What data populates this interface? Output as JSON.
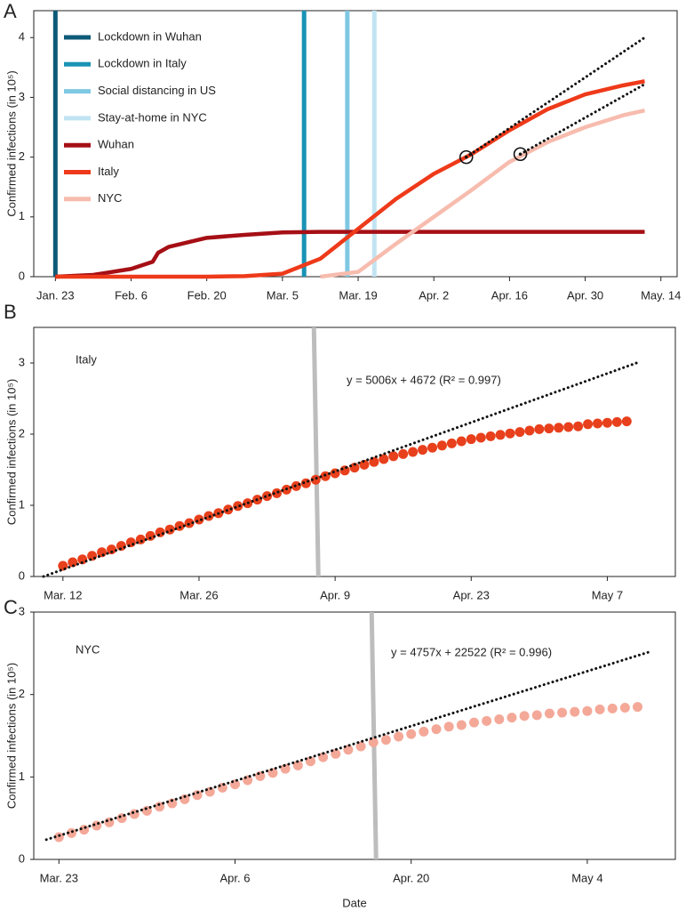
{
  "chart_data": [
    {
      "type": "line",
      "panel_label": "A",
      "y_label": "Confirmed infections (in 10⁵)",
      "x": [
        "Jan. 23",
        "Jan. 30",
        "Feb. 6",
        "Feb. 10",
        "Feb. 11",
        "Feb. 13",
        "Feb. 20",
        "Feb. 27",
        "Mar. 5",
        "Mar. 12",
        "Mar. 19",
        "Mar. 26",
        "Apr. 2",
        "Apr. 9",
        "Apr. 16",
        "Apr. 23",
        "Apr. 30",
        "May. 7",
        "May. 11"
      ],
      "series": [
        {
          "name": "Wuhan",
          "color": "#a50f15",
          "values": [
            0,
            0.03,
            0.13,
            0.25,
            0.4,
            0.5,
            0.65,
            0.7,
            0.74,
            0.75,
            0.75,
            0.75,
            0.75,
            0.75,
            0.75,
            0.75,
            0.75,
            0.75,
            0.75
          ]
        },
        {
          "name": "Italy",
          "color": "#ee3a1a",
          "values": [
            0,
            0,
            0,
            0,
            0,
            0,
            0,
            0.01,
            0.05,
            0.3,
            0.8,
            1.3,
            1.72,
            2.05,
            2.45,
            2.8,
            3.05,
            3.2,
            3.27
          ]
        },
        {
          "name": "NYC",
          "color": "#f7bcae",
          "values": [
            null,
            null,
            null,
            null,
            null,
            null,
            null,
            null,
            null,
            0,
            0.08,
            0.55,
            1.0,
            1.45,
            1.92,
            2.25,
            2.5,
            2.7,
            2.78
          ]
        }
      ],
      "events": [
        {
          "name": "Lockdown in Wuhan",
          "color": "#0d5a78",
          "x": "Jan. 23"
        },
        {
          "name": "Lockdown in Italy",
          "color": "#1a93b5",
          "x": "Mar. 9"
        },
        {
          "name": "Social distancing in US",
          "color": "#7ec8e3",
          "x": "Mar. 17"
        },
        {
          "name": "Stay-at-home in NYC",
          "color": "#c2e4f2",
          "x": "Mar. 22"
        }
      ],
      "fits": [
        {
          "color": "#111111",
          "x": [
            "Apr. 8",
            "May. 11"
          ],
          "values": [
            2.0,
            4.0
          ]
        },
        {
          "color": "#111111",
          "x": [
            "Apr. 18",
            "May. 11"
          ],
          "values": [
            2.05,
            3.22
          ]
        }
      ],
      "markers": {
        "x": [
          "Apr. 8",
          "Apr. 18"
        ],
        "values": [
          2.0,
          2.05
        ]
      },
      "xlim": [
        "Jan. 19",
        "May. 17"
      ],
      "xticks": [
        "Jan. 23",
        "Feb. 6",
        "Feb. 20",
        "Mar. 5",
        "Mar. 19",
        "Apr. 2",
        "Apr. 16",
        "Apr. 30",
        "May. 14"
      ],
      "ylim": [
        0,
        4.45
      ],
      "yticks": [
        0,
        1,
        2,
        3,
        4
      ],
      "legend": "upper left"
    },
    {
      "type": "scatter",
      "panel_label": "B",
      "y_label": "Confirmed infections (in 10⁵)",
      "color": "#e8401c",
      "annotations": [
        "Italy",
        "y = 5006x + 4672 (R² = 0.997)"
      ],
      "x": [
        "Mar. 12",
        "Mar. 13",
        "Mar. 14",
        "Mar. 15",
        "Mar. 16",
        "Mar. 17",
        "Mar. 18",
        "Mar. 19",
        "Mar. 20",
        "Mar. 21",
        "Mar. 22",
        "Mar. 23",
        "Mar. 24",
        "Mar. 25",
        "Mar. 26",
        "Mar. 27",
        "Mar. 28",
        "Mar. 29",
        "Mar. 30",
        "Mar. 31",
        "Apr. 1",
        "Apr. 2",
        "Apr. 3",
        "Apr. 4",
        "Apr. 5",
        "Apr. 6",
        "Apr. 7",
        "Apr. 8",
        "Apr. 9",
        "Apr. 10",
        "Apr. 11",
        "Apr. 12",
        "Apr. 13",
        "Apr. 14",
        "Apr. 15",
        "Apr. 16",
        "Apr. 17",
        "Apr. 18",
        "Apr. 19",
        "Apr. 20",
        "Apr. 21",
        "Apr. 22",
        "Apr. 23",
        "Apr. 24",
        "Apr. 25",
        "Apr. 26",
        "Apr. 27",
        "Apr. 28",
        "Apr. 29",
        "Apr. 30",
        "May 1",
        "May 2",
        "May 3",
        "May 4",
        "May 5",
        "May 6",
        "May 7",
        "May 8",
        "May 9"
      ],
      "values": [
        0.15,
        0.2,
        0.24,
        0.29,
        0.34,
        0.38,
        0.43,
        0.48,
        0.52,
        0.57,
        0.62,
        0.66,
        0.71,
        0.75,
        0.8,
        0.85,
        0.89,
        0.94,
        0.99,
        1.03,
        1.08,
        1.13,
        1.17,
        1.22,
        1.27,
        1.31,
        1.36,
        1.41,
        1.45,
        1.49,
        1.53,
        1.57,
        1.61,
        1.65,
        1.69,
        1.72,
        1.75,
        1.78,
        1.81,
        1.84,
        1.87,
        1.9,
        1.93,
        1.95,
        1.97,
        1.99,
        2.01,
        2.03,
        2.05,
        2.07,
        2.08,
        2.09,
        2.1,
        2.11,
        2.14,
        2.15,
        2.16,
        2.17,
        2.18
      ],
      "fits": [
        {
          "color": "#111111",
          "x": [
            "Mar. 10",
            "May 10"
          ],
          "values": [
            0,
            3.0
          ]
        }
      ],
      "cutoff": "Apr. 7",
      "xlim": [
        "Mar. 9",
        "May 14"
      ],
      "xticks": [
        "Mar. 12",
        "Mar. 26",
        "Apr. 9",
        "Apr. 23",
        "May 7"
      ],
      "ylim": [
        0,
        3.5
      ],
      "yticks": [
        0,
        1,
        2,
        3
      ]
    },
    {
      "type": "scatter",
      "panel_label": "C",
      "y_label": "Confirmed infections (in 10⁵)",
      "x_label": "Date",
      "color": "#f4a898",
      "annotations": [
        "NYC",
        "y = 4757x + 22522 (R² = 0.996)"
      ],
      "x": [
        "Mar. 23",
        "Mar. 24",
        "Mar. 25",
        "Mar. 26",
        "Mar. 27",
        "Mar. 28",
        "Mar. 29",
        "Mar. 30",
        "Mar. 31",
        "Apr. 1",
        "Apr. 2",
        "Apr. 3",
        "Apr. 4",
        "Apr. 5",
        "Apr. 6",
        "Apr. 7",
        "Apr. 8",
        "Apr. 9",
        "Apr. 10",
        "Apr. 11",
        "Apr. 12",
        "Apr. 13",
        "Apr. 14",
        "Apr. 15",
        "Apr. 16",
        "Apr. 17",
        "Apr. 18",
        "Apr. 19",
        "Apr. 20",
        "Apr. 21",
        "Apr. 22",
        "Apr. 23",
        "Apr. 24",
        "Apr. 25",
        "Apr. 26",
        "Apr. 27",
        "Apr. 28",
        "Apr. 29",
        "Apr. 30",
        "May 1",
        "May 2",
        "May 3",
        "May 4",
        "May 5",
        "May 6",
        "May 7",
        "May 8"
      ],
      "values": [
        0.27,
        0.32,
        0.36,
        0.41,
        0.45,
        0.5,
        0.55,
        0.59,
        0.64,
        0.68,
        0.73,
        0.78,
        0.82,
        0.87,
        0.91,
        0.96,
        1.01,
        1.05,
        1.1,
        1.14,
        1.19,
        1.24,
        1.28,
        1.33,
        1.37,
        1.42,
        1.45,
        1.49,
        1.52,
        1.55,
        1.58,
        1.61,
        1.63,
        1.66,
        1.68,
        1.7,
        1.72,
        1.74,
        1.75,
        1.77,
        1.78,
        1.79,
        1.8,
        1.82,
        1.83,
        1.84,
        1.85
      ],
      "fits": [
        {
          "color": "#111111",
          "x": [
            "Mar. 22",
            "May 9"
          ],
          "values": [
            0.24,
            2.52
          ]
        }
      ],
      "cutoff": "Apr. 17",
      "xlim": [
        "Mar. 21",
        "May 11"
      ],
      "xticks": [
        "Mar. 23",
        "Apr. 6",
        "Apr. 20",
        "May 4"
      ],
      "ylim": [
        0,
        3
      ],
      "yticks": [
        0,
        1,
        2,
        3
      ]
    }
  ]
}
